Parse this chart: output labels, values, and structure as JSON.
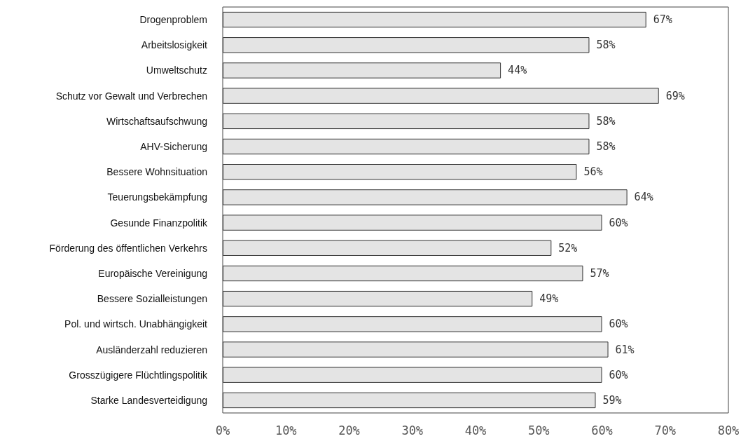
{
  "chart_data": {
    "type": "bar",
    "orientation": "horizontal",
    "categories": [
      "Drogenproblem",
      "Arbeitslosigkeit",
      "Umweltschutz",
      "Schutz vor Gewalt und Verbrechen",
      "Wirtschaftsaufschwung",
      "AHV-Sicherung",
      "Bessere Wohnsituation",
      "Teuerungsbekämpfung",
      "Gesunde Finanzpolitik",
      "Förderung des öffentlichen Verkehrs",
      "Europäische Vereinigung",
      "Bessere Sozialleistungen",
      "Pol. und wirtsch. Unabhängigkeit",
      "Ausländerzahl reduzieren",
      "Grosszügigere Flüchtlingspolitik",
      "Starke Landesverteidigung"
    ],
    "values": [
      67,
      58,
      44,
      69,
      58,
      58,
      56,
      64,
      60,
      52,
      57,
      49,
      60,
      61,
      60,
      59
    ],
    "value_labels": [
      "67%",
      "58%",
      "44%",
      "69%",
      "58%",
      "58%",
      "56%",
      "64%",
      "60%",
      "52%",
      "57%",
      "49%",
      "60%",
      "61%",
      "60%",
      "59%"
    ],
    "color": "#e4e4e4",
    "xlim": [
      0,
      80
    ],
    "xticks": [
      {
        "value": 0,
        "label": "0%"
      },
      {
        "value": 10,
        "label": "10%"
      },
      {
        "value": 20,
        "label": "20%"
      },
      {
        "value": 30,
        "label": "30%"
      },
      {
        "value": 40,
        "label": "40%"
      },
      {
        "value": 50,
        "label": "50%"
      },
      {
        "value": 60,
        "label": "60%"
      },
      {
        "value": 70,
        "label": "70%"
      },
      {
        "value": 80,
        "label": "80%"
      }
    ],
    "grid": false
  }
}
